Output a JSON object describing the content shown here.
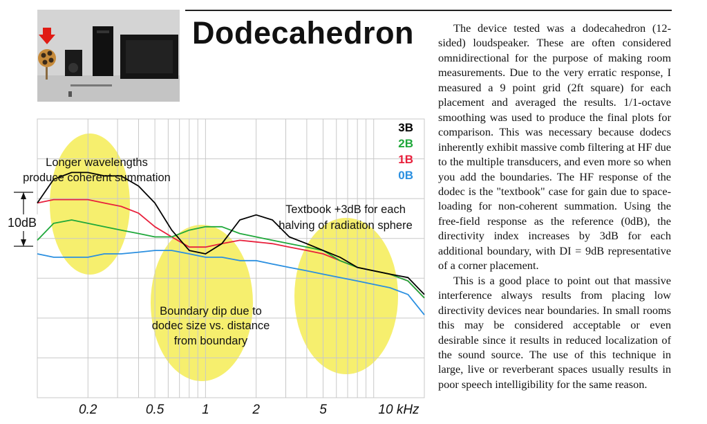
{
  "title": "Dodecahedron",
  "article": {
    "paragraphs": [
      "The device tested was a dodecahedron (12-sided) loudspeaker. These are often considered omnidirectional for the purpose of making room measurements. Due to the very erratic response, I measured a 9 point grid (2ft square) for each placement and averaged the results. 1/1-octave smoothing was used to produce the final plots for comparison. This was necessary because dodecs inherently exhibit massive comb filtering at HF due to the multiple transducers, and even more so when you add the boundaries. The HF response of the dodec is the \"textbook\" case for gain due to space-loading for non-coherent summation. Using the free-field response as the reference (0dB), the directivity index increases by 3dB for each additional boundary, with DI = 9dB representative of a corner placement.",
      "This is a good place to point out that massive interference always results from placing low directivity devices near boundaries. In small rooms this may be considered acceptable or even desirable since it results in reduced localization of the sound source. The use of this technique in large, live or reverberant spaces usually results in poor speech intelligibility for the same reason."
    ]
  },
  "chart_data": {
    "type": "line",
    "xscale": "log",
    "xlim": [
      0.1,
      20
    ],
    "grid": true,
    "legend_position": "top-right",
    "x_ticks": [
      "0.2",
      "0.5",
      "1",
      "2",
      "5",
      "10 kHz"
    ],
    "scale_label": "10dB",
    "series": [
      {
        "name": "3B",
        "color": "#000000",
        "x": [
          0.1,
          0.125,
          0.16,
          0.2,
          0.25,
          0.315,
          0.4,
          0.5,
          0.63,
          0.8,
          1,
          1.25,
          1.6,
          2,
          2.5,
          3.15,
          4,
          5,
          6.3,
          8,
          10,
          12.5,
          16,
          20
        ],
        "y": [
          5,
          12,
          14,
          14,
          13,
          13,
          10,
          5,
          -3,
          -9,
          -10,
          -7,
          0,
          1.5,
          0,
          -5,
          -7,
          -9,
          -11,
          -14,
          -15,
          -16,
          -17,
          -22
        ]
      },
      {
        "name": "2B",
        "color": "#1fa83a",
        "x": [
          0.1,
          0.125,
          0.16,
          0.2,
          0.25,
          0.315,
          0.4,
          0.5,
          0.63,
          0.8,
          1,
          1.25,
          1.6,
          2,
          2.5,
          3.15,
          4,
          5,
          6.3,
          8,
          10,
          12.5,
          16,
          20
        ],
        "y": [
          -6,
          -1,
          0,
          -1,
          -2,
          -3,
          -4,
          -5,
          -5,
          -3,
          -2,
          -2,
          -4,
          -5,
          -6,
          -7,
          -8,
          -9,
          -12,
          -14,
          -15,
          -16,
          -18,
          -23
        ]
      },
      {
        "name": "1B",
        "color": "#e8203c",
        "x": [
          0.1,
          0.125,
          0.16,
          0.2,
          0.25,
          0.315,
          0.4,
          0.5,
          0.63,
          0.8,
          1,
          1.25,
          1.6,
          2,
          2.5,
          3.15,
          4,
          5,
          6.3,
          8,
          10,
          12.5,
          16,
          20
        ],
        "y": [
          5,
          6,
          6,
          6,
          5,
          4,
          2,
          -2,
          -5,
          -8,
          -8,
          -7,
          -6,
          -6.5,
          -7,
          -8,
          -9,
          -10,
          -12,
          -14,
          -15,
          -16,
          -18,
          -23
        ]
      },
      {
        "name": "0B",
        "color": "#2a8fe0",
        "x": [
          0.1,
          0.125,
          0.16,
          0.2,
          0.25,
          0.315,
          0.4,
          0.5,
          0.63,
          0.8,
          1,
          1.25,
          1.6,
          2,
          2.5,
          3.15,
          4,
          5,
          6.3,
          8,
          10,
          12.5,
          16,
          20
        ],
        "y": [
          -10,
          -11,
          -11,
          -11,
          -10,
          -10,
          -9.5,
          -9,
          -9,
          -10,
          -11,
          -11,
          -12,
          -12,
          -13,
          -14,
          -15,
          -16,
          -17,
          -18,
          -19,
          -20,
          -22,
          -28
        ]
      }
    ],
    "annotations": [
      {
        "lines": [
          "Longer wavelengths",
          "produce coherent summation"
        ]
      },
      {
        "lines": [
          "Boundary dip due to",
          "dodec size vs. distance",
          "from boundary"
        ]
      },
      {
        "lines": [
          "Textbook +3dB for each",
          "halving of radiation sphere"
        ]
      }
    ],
    "highlight_color": "#f6ef6e"
  }
}
